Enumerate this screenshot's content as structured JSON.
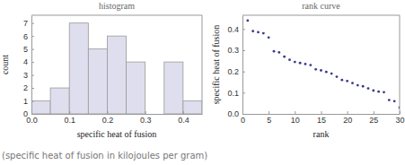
{
  "chart_data": [
    {
      "type": "histogram",
      "title": "histogram",
      "x_label": "specific heat of fusion",
      "y_label": "count",
      "bins": [
        0,
        0.05,
        0.1,
        0.15,
        0.2,
        0.25,
        0.3,
        0.35,
        0.4,
        0.45
      ],
      "values": [
        1,
        2,
        7,
        5,
        6,
        4,
        0,
        4,
        1
      ],
      "color": "#dedeee",
      "xlim": [
        0,
        0.45
      ],
      "xticks": [
        {
          "value": 0,
          "label": "0.0"
        },
        0.1,
        0.2,
        0.3,
        0.4
      ],
      "ylim": [
        0,
        7.6
      ],
      "yticks": [
        0,
        1,
        2,
        3,
        4,
        5,
        6,
        7
      ]
    },
    {
      "type": "scatter",
      "title": "rank curve",
      "x_label": "rank",
      "y_label": "specific heat of fusion",
      "x": [
        1,
        2,
        3,
        4,
        5,
        6,
        7,
        8,
        9,
        10,
        11,
        12,
        13,
        14,
        15,
        16,
        17,
        18,
        19,
        20,
        21,
        22,
        23,
        24,
        25,
        26,
        27,
        28,
        29,
        30
      ],
      "values": [
        0.44,
        0.39,
        0.385,
        0.38,
        0.36,
        0.295,
        0.29,
        0.27,
        0.255,
        0.245,
        0.24,
        0.235,
        0.23,
        0.21,
        0.205,
        0.198,
        0.19,
        0.175,
        0.16,
        0.155,
        0.145,
        0.135,
        0.13,
        0.12,
        0.11,
        0.105,
        0.102,
        0.065,
        0.06,
        0.03
      ],
      "color": "#3a3a8c",
      "xlim": [
        0,
        30
      ],
      "xticks": [
        0,
        5,
        10,
        15,
        20,
        25,
        30
      ],
      "ylim": [
        0,
        0.465
      ],
      "yticks": [
        {
          "value": 0,
          "label": "0.0"
        },
        0.1,
        0.2,
        0.3,
        0.4
      ]
    }
  ],
  "caption": "(specific heat of fusion in kilojoules per gram)"
}
